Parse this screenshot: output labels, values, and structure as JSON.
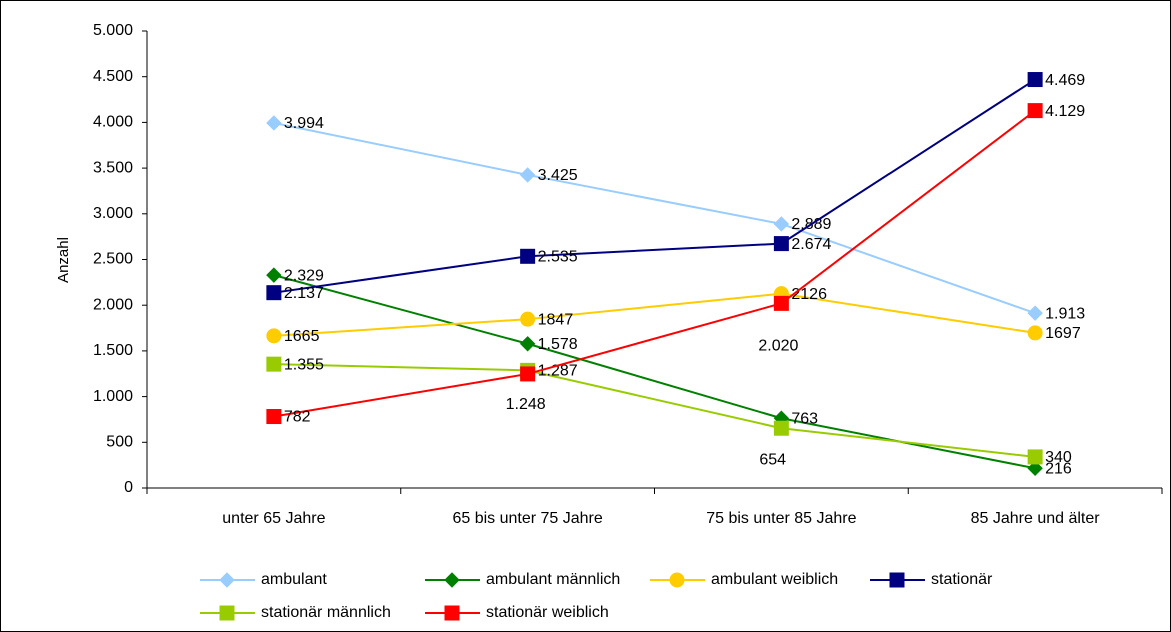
{
  "chart_data": {
    "type": "line",
    "y_label": "Anzahl",
    "categories": [
      "unter 65 Jahre",
      "65 bis unter 75 Jahre",
      "75 bis unter 85 Jahre",
      "85 Jahre und älter"
    ],
    "ylim": [
      0,
      5000
    ],
    "yticks": [
      0,
      500,
      {
        "value": 1000,
        "label": "1.000"
      },
      {
        "value": 1500,
        "label": "1.500"
      },
      {
        "value": 2000,
        "label": "2.000"
      },
      {
        "value": 2500,
        "label": "2.500"
      },
      {
        "value": 3000,
        "label": "3.000"
      },
      {
        "value": 3500,
        "label": "3.500"
      },
      {
        "value": 4000,
        "label": "4.000"
      },
      {
        "value": 4500,
        "label": "4.500"
      },
      {
        "value": 5000,
        "label": "5.000"
      }
    ],
    "series": [
      {
        "name": "ambulant",
        "color": "#99ccff",
        "marker": "diamond",
        "values": [
          3994,
          3425,
          2889,
          1913
        ],
        "value_labels": [
          "3.994",
          "3.425",
          "2.889",
          "1.913"
        ]
      },
      {
        "name": "ambulant männlich",
        "color": "#008000",
        "marker": "diamond",
        "values": [
          2329,
          1578,
          763,
          216
        ],
        "value_labels": [
          "2.329",
          "1.578",
          "763",
          "216"
        ]
      },
      {
        "name": "ambulant weiblich",
        "color": "#ffcc00",
        "marker": "circle",
        "values": [
          1665,
          1847,
          2126,
          1697
        ]
      },
      {
        "name": "stationär",
        "color": "#000080",
        "marker": "square",
        "values": [
          2137,
          2535,
          2674,
          4469
        ],
        "value_labels": [
          "2.137",
          "2.535",
          "2.674",
          "4.469"
        ]
      },
      {
        "name": "stationär männlich",
        "color": "#99cc00",
        "marker": "square",
        "values": [
          1355,
          1287,
          654,
          340
        ],
        "value_labels": [
          "1.355",
          "1.287",
          "654",
          "340"
        ]
      },
      {
        "name": "stationär weiblich",
        "color": "#ff0000",
        "marker": "square",
        "values": [
          782,
          1248,
          2020,
          4129
        ],
        "value_labels": [
          "782",
          "1.248",
          "2.020",
          "4.129"
        ]
      }
    ]
  }
}
